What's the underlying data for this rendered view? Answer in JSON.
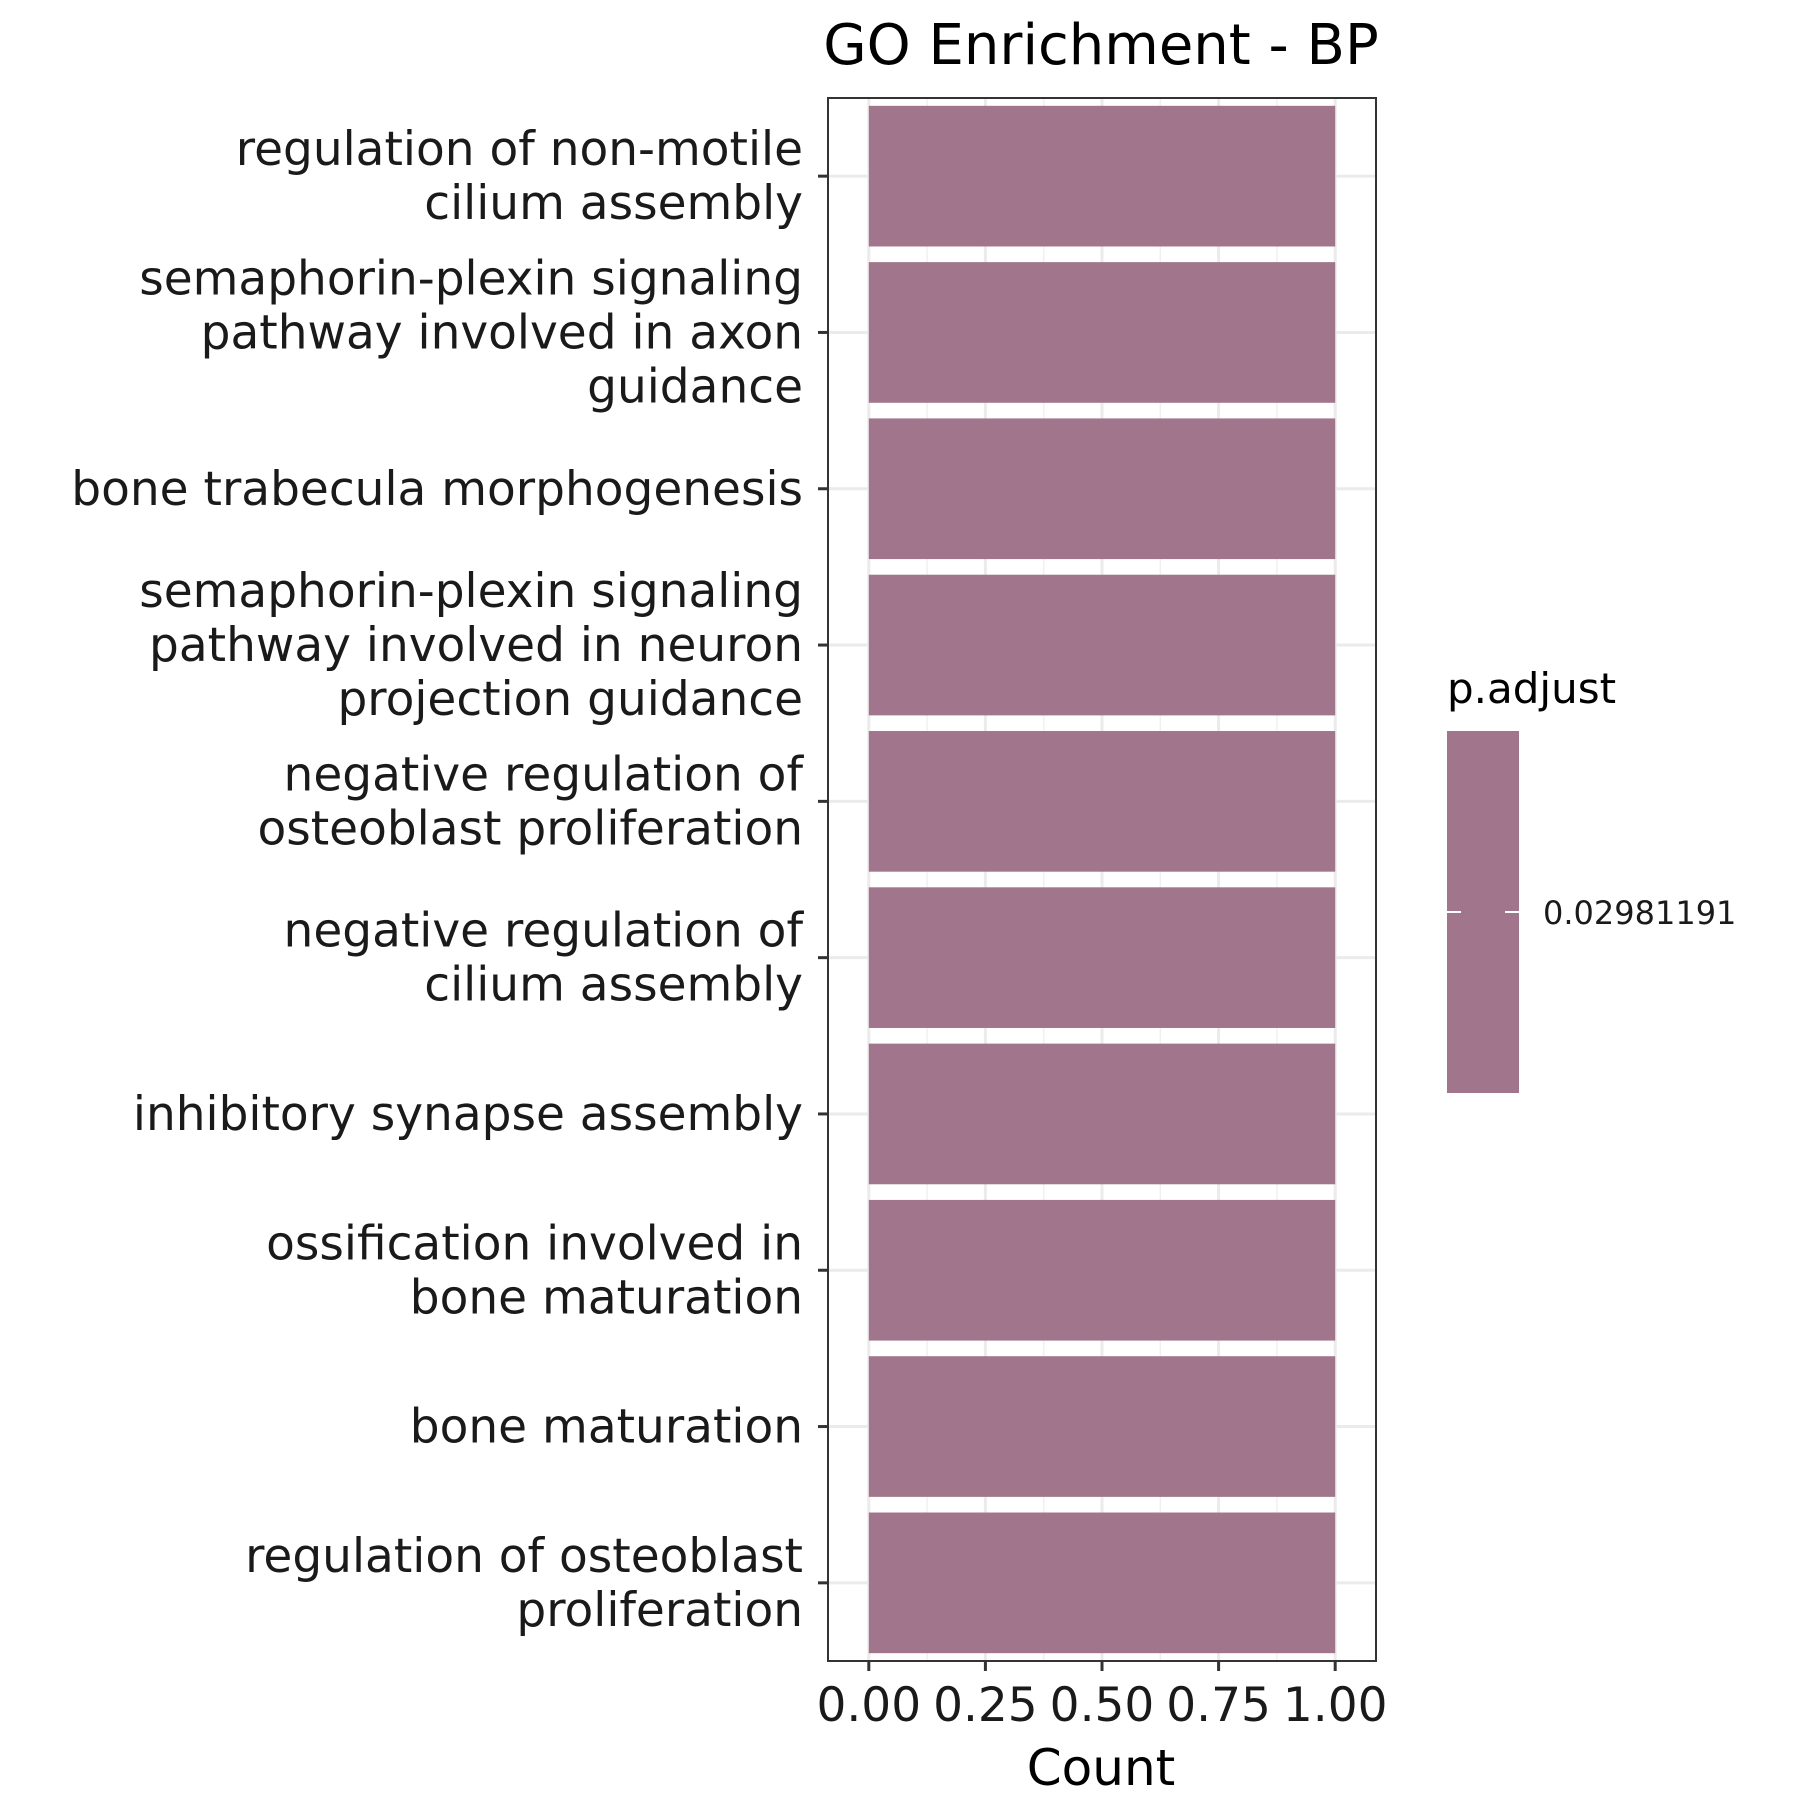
{
  "chart_data": {
    "type": "bar",
    "orientation": "horizontal",
    "title": "GO Enrichment - BP",
    "xlabel": "Count",
    "ylabel": "",
    "xlim": [
      -0.0875,
      1.0875
    ],
    "x_ticks": [
      "0.00",
      "0.25",
      "0.50",
      "0.75",
      "1.00"
    ],
    "x_tick_values": [
      0,
      0.25,
      0.5,
      0.75,
      1.0
    ],
    "grid": true,
    "categories": [
      "regulation of non-motile\ncilium assembly",
      "semaphorin-plexin signaling\npathway involved in axon\nguidance",
      "bone trabecula morphogenesis",
      "semaphorin-plexin signaling\npathway involved in neuron\nprojection guidance",
      "negative regulation of\nosteoblast proliferation",
      "negative regulation of\ncilium assembly",
      "inhibitory synapse assembly",
      "ossification involved in\nbone maturation",
      "bone maturation",
      "regulation of osteoblast\nproliferation"
    ],
    "values": [
      1,
      1,
      1,
      1,
      1,
      1,
      1,
      1,
      1,
      1
    ],
    "bar_color": "#a1768c",
    "legend": {
      "title": "p.adjust",
      "position": "right",
      "labels": [
        "0.02981191"
      ],
      "color": "#a1768c"
    }
  }
}
